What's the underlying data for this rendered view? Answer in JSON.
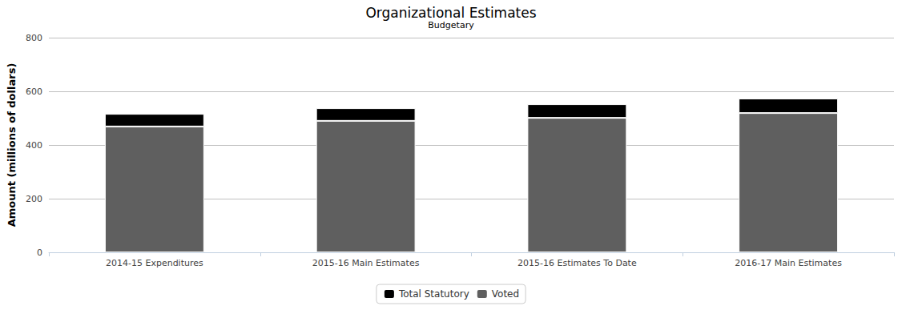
{
  "chart_data": {
    "type": "bar",
    "title": "Organizational Estimates",
    "subtitle": "Budgetary",
    "y_label": "Amount (millions of dollars)",
    "categories": [
      "2014-15 Expenditures",
      "2015-16 Main Estimates",
      "2015-16 Estimates To Date",
      "2016-17 Main Estimates"
    ],
    "series": [
      {
        "name": "Total Statutory",
        "color": "#000000",
        "values": [
          47,
          47,
          51,
          54
        ]
      },
      {
        "name": "Voted",
        "color": "#5f5f5f",
        "values": [
          469,
          490,
          501,
          519
        ]
      }
    ],
    "stacked": true,
    "ylim": [
      0,
      800
    ],
    "yticks": [
      0,
      200,
      400,
      600,
      800
    ],
    "grid": true,
    "legend": "bottom"
  }
}
